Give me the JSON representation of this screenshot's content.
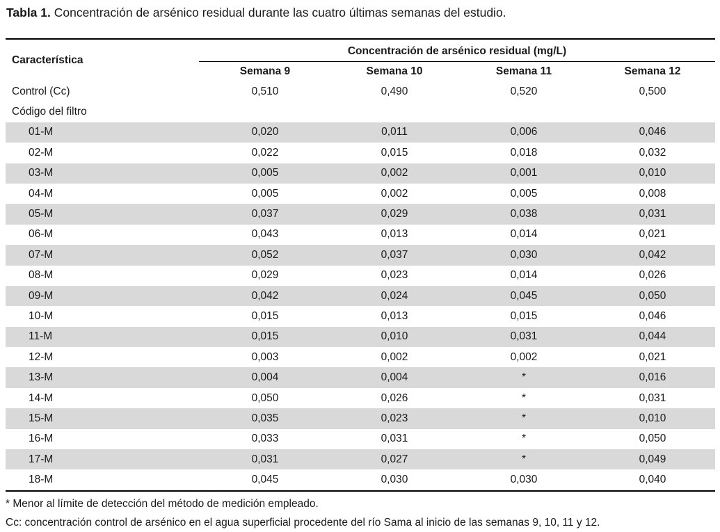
{
  "caption": {
    "label": "Tabla 1.",
    "text": " Concentración de arsénico residual durante las cuatro últimas semanas del estudio."
  },
  "table": {
    "row_header": "Característica",
    "group_header": "Concentración de arsénico residual (mg/L)",
    "weeks": [
      "Semana 9",
      "Semana 10",
      "Semana 11",
      "Semana 12"
    ],
    "control": {
      "name": "Control (Cc)",
      "values": [
        "0,510",
        "0,490",
        "0,520",
        "0,500"
      ]
    },
    "section_label": "Código del filtro",
    "rows": [
      {
        "name": "01-M",
        "values": [
          "0,020",
          "0,011",
          "0,006",
          "0,046"
        ]
      },
      {
        "name": "02-M",
        "values": [
          "0,022",
          "0,015",
          "0,018",
          "0,032"
        ]
      },
      {
        "name": "03-M",
        "values": [
          "0,005",
          "0,002",
          "0,001",
          "0,010"
        ]
      },
      {
        "name": "04-M",
        "values": [
          "0,005",
          "0,002",
          "0,005",
          "0,008"
        ]
      },
      {
        "name": "05-M",
        "values": [
          "0,037",
          "0,029",
          "0,038",
          "0,031"
        ]
      },
      {
        "name": "06-M",
        "values": [
          "0,043",
          "0,013",
          "0,014",
          "0,021"
        ]
      },
      {
        "name": "07-M",
        "values": [
          "0,052",
          "0,037",
          "0,030",
          "0,042"
        ]
      },
      {
        "name": "08-M",
        "values": [
          "0,029",
          "0,023",
          "0,014",
          "0,026"
        ]
      },
      {
        "name": "09-M",
        "values": [
          "0,042",
          "0,024",
          "0,045",
          "0,050"
        ]
      },
      {
        "name": "10-M",
        "values": [
          "0,015",
          "0,013",
          "0,015",
          "0,046"
        ]
      },
      {
        "name": "11-M",
        "values": [
          "0,015",
          "0,010",
          "0,031",
          "0,044"
        ]
      },
      {
        "name": "12-M",
        "values": [
          "0,003",
          "0,002",
          "0,002",
          "0,021"
        ]
      },
      {
        "name": "13-M",
        "values": [
          "0,004",
          "0,004",
          "*",
          "0,016"
        ]
      },
      {
        "name": "14-M",
        "values": [
          "0,050",
          "0,026",
          "*",
          "0,031"
        ]
      },
      {
        "name": "15-M",
        "values": [
          "0,035",
          "0,023",
          "*",
          "0,010"
        ]
      },
      {
        "name": "16-M",
        "values": [
          "0,033",
          "0,031",
          "*",
          "0,050"
        ]
      },
      {
        "name": "17-M",
        "values": [
          "0,031",
          "0,027",
          "*",
          "0,049"
        ]
      },
      {
        "name": "18-M",
        "values": [
          "0,045",
          "0,030",
          "0,030",
          "0,040"
        ]
      }
    ],
    "shade_color": "#d9d9d9"
  },
  "footnotes": [
    "* Menor al límite de detección del método de medición empleado.",
    "Cc: concentración control de arsénico en el agua superficial procedente del río Sama al inicio de las semanas 9, 10, 11 y 12."
  ]
}
